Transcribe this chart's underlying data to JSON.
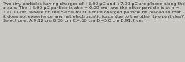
{
  "text": "Two tiny particles having charges of +5.00 μC and +7.00 μC are placed along the x-axis. The +5.00-μC particle is at x = 0.00 cm, and the other particle is at x = 100.00 cm. Where on the x-axis must a third charged particle be placed so that it does not experience any net electrostatic force due to the other two particles? Select one: A.9.12 cm B.50 cm C.4.58 cm D.45.8 cm E.91.2 cm",
  "bg_color": "#cac8c3",
  "text_color": "#2a2a2a",
  "font_size": 4.5,
  "fig_width": 2.61,
  "fig_height": 0.88,
  "dpi": 100
}
